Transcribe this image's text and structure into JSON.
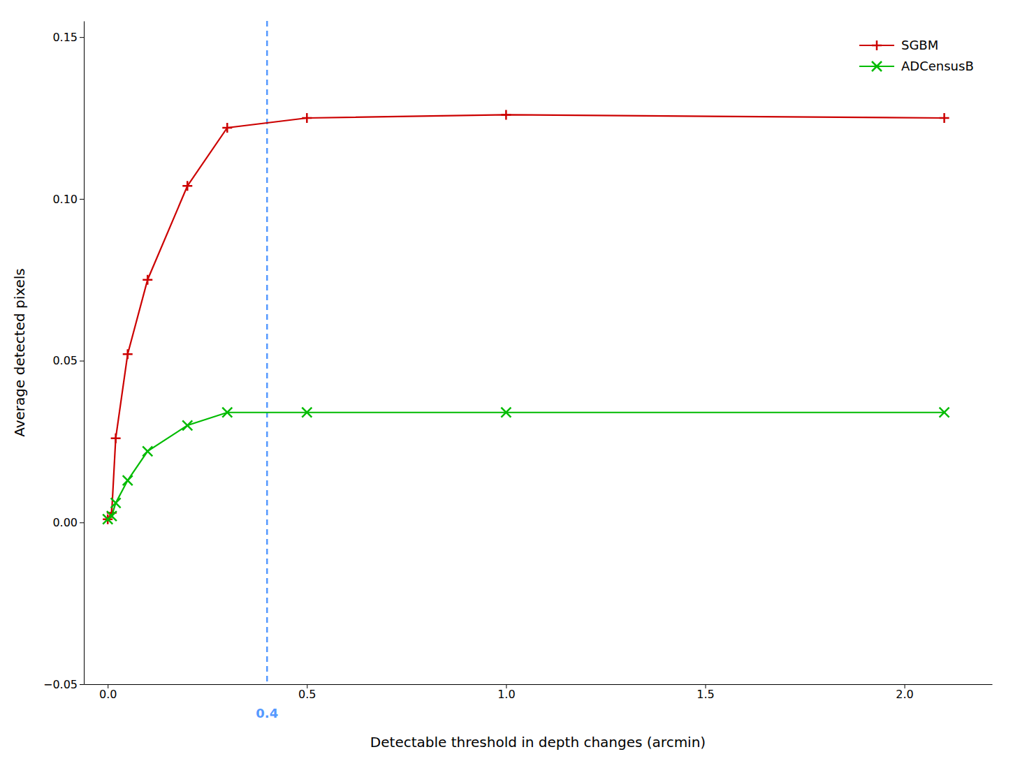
{
  "chart_data": {
    "type": "line",
    "x_label": "Detectable threshold in depth changes (arcmin)",
    "y_label": "Average detected pixels",
    "x": [
      0.0,
      0.01,
      0.02,
      0.05,
      0.1,
      0.2,
      0.3,
      0.5,
      1.0,
      2.1
    ],
    "series": [
      {
        "name": "SGBM",
        "color": "#cc0000",
        "marker": "plus",
        "values": [
          0.001,
          0.003,
          0.026,
          0.052,
          0.075,
          0.104,
          0.122,
          0.125,
          0.126,
          0.125
        ]
      },
      {
        "name": "ADCensusB",
        "color": "#00bb00",
        "marker": "x",
        "values": [
          0.001,
          0.002,
          0.006,
          0.013,
          0.022,
          0.03,
          0.034,
          0.034,
          0.034,
          0.034
        ]
      }
    ],
    "xlim": [
      -0.06,
      2.22
    ],
    "ylim": [
      -0.05,
      0.155
    ],
    "xticks": [
      {
        "value": 0.0,
        "label": "0.0"
      },
      {
        "value": 0.5,
        "label": "0.5"
      },
      {
        "value": 1.0,
        "label": "1.0"
      },
      {
        "value": 1.5,
        "label": "1.5"
      },
      {
        "value": 2.0,
        "label": "2.0"
      }
    ],
    "yticks": [
      {
        "value": -0.05,
        "label": "−0.05"
      },
      {
        "value": 0.0,
        "label": "0.00"
      },
      0.05,
      {
        "value": 0.1,
        "label": "0.10"
      },
      0.15
    ],
    "annotations": [
      {
        "type": "vline",
        "x": 0.4,
        "text": "0.4",
        "color": "#5599ff",
        "line_style": "dashed"
      }
    ],
    "legend": "upper right",
    "grid": false
  }
}
